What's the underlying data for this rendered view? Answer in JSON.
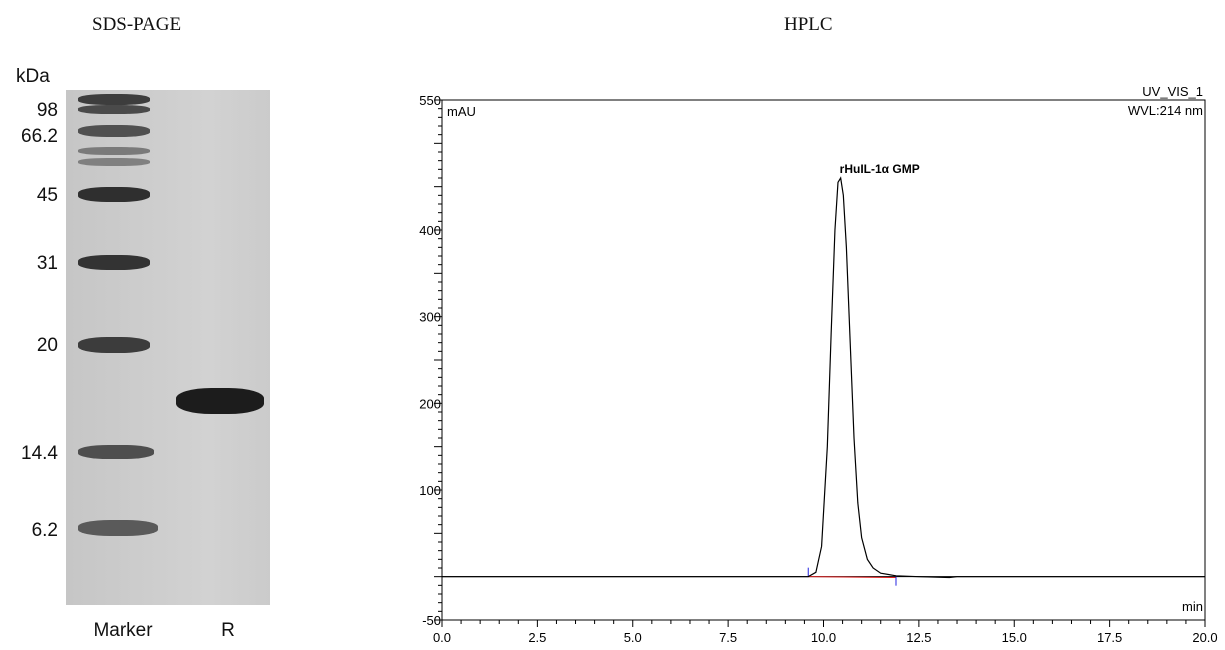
{
  "sds_page": {
    "title": "SDS-PAGE",
    "unit_label": "kDa",
    "markers": [
      "98",
      "66.2",
      "45",
      "31",
      "20",
      "14.4",
      "6.2"
    ],
    "lanes": [
      "Marker",
      "R"
    ]
  },
  "chart_data": {
    "type": "line",
    "title": "HPLC",
    "channel": "UV_VIS_1",
    "wavelength": "WVL:214 nm",
    "xlabel": "min",
    "ylabel": "mAU",
    "xlim": [
      0,
      20
    ],
    "ylim": [
      -50,
      550
    ],
    "xticks": [
      "0.0",
      "2.5",
      "5.0",
      "7.5",
      "10.0",
      "12.5",
      "15.0",
      "17.5",
      "20.0"
    ],
    "yticks": [
      "550",
      "400",
      "300",
      "200",
      "100",
      "-50"
    ],
    "grid": false,
    "peak_label": "rHuIL-1α GMP",
    "series": [
      {
        "x": [
          0,
          9.6,
          9.8,
          9.95,
          10.1,
          10.2,
          10.3,
          10.38,
          10.45,
          10.52,
          10.6,
          10.7,
          10.8,
          10.9,
          11.0,
          11.15,
          11.3,
          11.5,
          11.9,
          12.5,
          13.3,
          13.5,
          20
        ],
        "y": [
          0,
          0,
          5,
          35,
          150,
          280,
          400,
          455,
          460,
          440,
          380,
          270,
          160,
          85,
          45,
          20,
          10,
          4,
          1,
          0,
          -1,
          0,
          0
        ]
      }
    ],
    "baseline": {
      "x": [
        9.6,
        11.9
      ],
      "y": [
        0,
        -1
      ]
    },
    "markers_x": [
      9.6,
      11.9
    ]
  }
}
